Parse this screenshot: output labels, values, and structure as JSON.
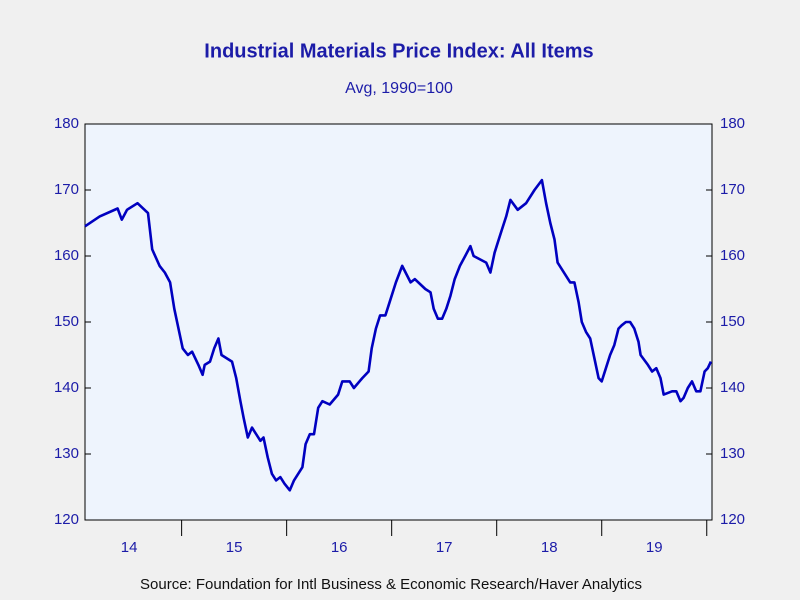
{
  "chart_data": {
    "type": "line",
    "title": "Industrial Materials Price Index: All Items",
    "subtitle": "Avg, 1990=100",
    "source": "Source:  Foundation for Intl Business & Economic Research/Haver Analytics",
    "x": [
      2014.08,
      2014.22,
      2014.39,
      2014.43,
      2014.48,
      2014.58,
      2014.68,
      2014.72,
      2014.79,
      2014.84,
      2014.89,
      2014.93,
      2014.97,
      2015.01,
      2015.06,
      2015.1,
      2015.16,
      2015.2,
      2015.22,
      2015.27,
      2015.31,
      2015.35,
      2015.38,
      2015.48,
      2015.52,
      2015.56,
      2015.59,
      2015.63,
      2015.67,
      2015.75,
      2015.78,
      2015.82,
      2015.86,
      2015.9,
      2015.94,
      2015.98,
      2016.03,
      2016.07,
      2016.15,
      2016.18,
      2016.22,
      2016.26,
      2016.3,
      2016.34,
      2016.41,
      2016.49,
      2016.53,
      2016.6,
      2016.64,
      2016.72,
      2016.78,
      2016.81,
      2016.85,
      2016.89,
      2016.94,
      2016.98,
      2017.04,
      2017.1,
      2017.18,
      2017.22,
      2017.32,
      2017.37,
      2017.4,
      2017.44,
      2017.48,
      2017.52,
      2017.56,
      2017.6,
      2017.65,
      2017.7,
      2017.75,
      2017.78,
      2017.9,
      2017.94,
      2017.98,
      2018.01,
      2018.05,
      2018.09,
      2018.13,
      2018.2,
      2018.28,
      2018.36,
      2018.43,
      2018.47,
      2018.51,
      2018.55,
      2018.58,
      2018.62,
      2018.7,
      2018.74,
      2018.78,
      2018.81,
      2018.85,
      2018.89,
      2018.93,
      2018.97,
      2019.0,
      2019.04,
      2019.08,
      2019.12,
      2019.16,
      2019.19,
      2019.23,
      2019.27,
      2019.31,
      2019.35,
      2019.37,
      2019.44,
      2019.48,
      2019.52,
      2019.56,
      2019.59,
      2019.67,
      2019.71,
      2019.75,
      2019.78,
      2019.82,
      2019.86,
      2019.9,
      2019.94,
      2019.98,
      2020.01,
      2020.04
    ],
    "series": [
      {
        "color": "#0000c0",
        "values": [
          164.5,
          166,
          167.2,
          165.5,
          167,
          168,
          166.5,
          161,
          158.5,
          157.5,
          156,
          152,
          149,
          146,
          145,
          145.5,
          143.5,
          142,
          143.5,
          144,
          146,
          147.5,
          145,
          144,
          141.5,
          138,
          135.5,
          132.5,
          134,
          132,
          132.5,
          129.5,
          127,
          126,
          126.5,
          125.5,
          124.5,
          126,
          128,
          131.5,
          133,
          133,
          137,
          138,
          137.5,
          139,
          141,
          141,
          140,
          141.5,
          142.5,
          146,
          149,
          151,
          151,
          153,
          156,
          158.5,
          156,
          156.5,
          155,
          154.5,
          152,
          150.5,
          150.5,
          152,
          154,
          156.5,
          158.5,
          160,
          161.5,
          160,
          159,
          157.5,
          160.5,
          162,
          164,
          166,
          168.5,
          167,
          168,
          170,
          171.5,
          168,
          165,
          162.5,
          159,
          158,
          156,
          156,
          153,
          150,
          148.5,
          147.5,
          144.5,
          141.5,
          141,
          143,
          145,
          146.5,
          149,
          149.5,
          150,
          150,
          149,
          147,
          145,
          143.5,
          142.5,
          143,
          141.5,
          139,
          139.5,
          139.5,
          138,
          138.5,
          140,
          141,
          139.5,
          139.5,
          142.5,
          143,
          144
        ]
      }
    ],
    "xlim": [
      2014.08,
      2020.05
    ],
    "xticks": [
      {
        "value": 2014.5,
        "label": "14"
      },
      {
        "value": 2015.5,
        "label": "15"
      },
      {
        "value": 2016.5,
        "label": "16"
      },
      {
        "value": 2017.5,
        "label": "17"
      },
      {
        "value": 2018.5,
        "label": "18"
      },
      {
        "value": 2019.5,
        "label": "19"
      }
    ],
    "year_ticks": [
      2015,
      2016,
      2017,
      2018,
      2019,
      2020
    ],
    "ylim": [
      120,
      180
    ],
    "yticks": [
      120,
      130,
      140,
      150,
      160,
      170,
      180
    ]
  }
}
